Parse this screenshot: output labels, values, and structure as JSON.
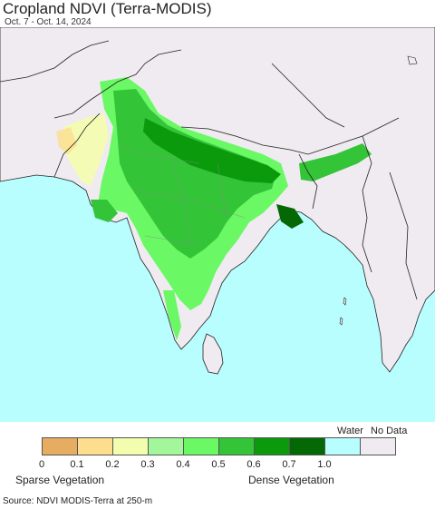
{
  "title": "Cropland NDVI (Terra-MODIS)",
  "subtitle": "Oct. 7 - Oct. 14, 2024",
  "colors": {
    "ocean": "#b8feff",
    "land_nodata": "#efebf0",
    "border": "#222222",
    "state_border": "#888888"
  },
  "legend": {
    "swatches": [
      {
        "value": "0",
        "color": "#e6ac62"
      },
      {
        "value": "0.1",
        "color": "#fdde8e"
      },
      {
        "value": "0.2",
        "color": "#f3fdae"
      },
      {
        "value": "0.3",
        "color": "#a3f79a"
      },
      {
        "value": "0.4",
        "color": "#6af865"
      },
      {
        "value": "0.5",
        "color": "#33c438"
      },
      {
        "value": "0.6",
        "color": "#0a9a0c"
      },
      {
        "value": "0.7",
        "color": "#046904"
      },
      {
        "value": "1.0",
        "color": "#b8feff"
      },
      {
        "value": "",
        "color": "#efebf0"
      }
    ],
    "water_label": "Water",
    "nodata_label": "No Data",
    "sparse_label": "Sparse Vegetation",
    "dense_label": "Dense Vegetation"
  },
  "source": "Source: NDVI MODIS-Terra at 250-m"
}
